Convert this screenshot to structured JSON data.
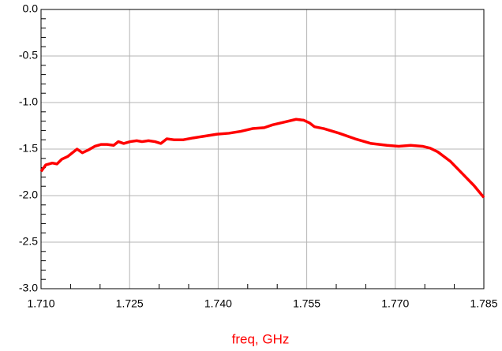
{
  "chart_data": {
    "type": "line",
    "xlabel": "freq, GHz",
    "x": [
      1.71,
      1.7108,
      1.7119,
      1.7127,
      1.7135,
      1.7145,
      1.7153,
      1.7161,
      1.717,
      1.718,
      1.7191,
      1.7202,
      1.7212,
      1.7223,
      1.7231,
      1.724,
      1.7251,
      1.7262,
      1.7271,
      1.7282,
      1.7293,
      1.7303,
      1.7313,
      1.7325,
      1.7341,
      1.7358,
      1.7378,
      1.7398,
      1.7418,
      1.7438,
      1.7458,
      1.7478,
      1.7492,
      1.7512,
      1.7532,
      1.7545,
      1.7555,
      1.7563,
      1.7579,
      1.7605,
      1.7632,
      1.7659,
      1.7686,
      1.7706,
      1.7726,
      1.7746,
      1.7759,
      1.7772,
      1.7793,
      1.7813,
      1.7833,
      1.785
    ],
    "series": [
      {
        "color": "#ff0000",
        "values": [
          -1.74,
          -1.67,
          -1.65,
          -1.66,
          -1.61,
          -1.58,
          -1.54,
          -1.5,
          -1.54,
          -1.51,
          -1.47,
          -1.45,
          -1.45,
          -1.46,
          -1.42,
          -1.44,
          -1.42,
          -1.41,
          -1.42,
          -1.41,
          -1.42,
          -1.44,
          -1.39,
          -1.4,
          -1.4,
          -1.38,
          -1.36,
          -1.34,
          -1.33,
          -1.31,
          -1.28,
          -1.27,
          -1.24,
          -1.21,
          -1.18,
          -1.19,
          -1.22,
          -1.26,
          -1.28,
          -1.33,
          -1.39,
          -1.44,
          -1.46,
          -1.47,
          -1.46,
          -1.47,
          -1.49,
          -1.53,
          -1.63,
          -1.76,
          -1.89,
          -2.02
        ]
      }
    ],
    "xlim": [
      1.71,
      1.785
    ],
    "xticks": [
      {
        "value": 1.71,
        "label": "1.710"
      },
      {
        "value": 1.725,
        "label": "1.725"
      },
      {
        "value": 1.74,
        "label": "1.740"
      },
      {
        "value": 1.755,
        "label": "1.755"
      },
      {
        "value": 1.77,
        "label": "1.770"
      },
      {
        "value": 1.785,
        "label": "1.785"
      }
    ],
    "ylim": [
      -3.0,
      0.0
    ],
    "yticks": [
      {
        "value": 0.0,
        "label": "0.0"
      },
      -0.5,
      {
        "value": -1.0,
        "label": "-1.0"
      },
      -1.5,
      {
        "value": -2.0,
        "label": "-2.0"
      },
      -2.5,
      {
        "value": -3.0,
        "label": "-3.0"
      }
    ],
    "grid": true
  }
}
